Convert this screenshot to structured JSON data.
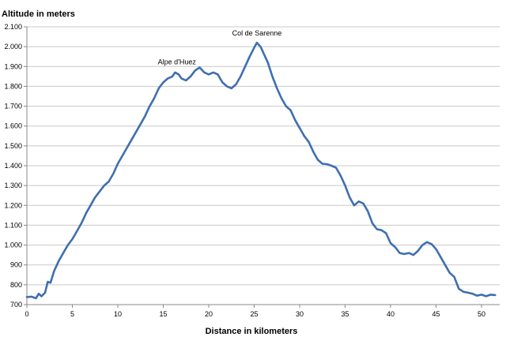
{
  "chart_data": {
    "type": "line",
    "title": "",
    "ylabel": "Altitude in meters",
    "xlabel": "Distance in kilometers",
    "xlim": [
      0,
      52
    ],
    "ylim": [
      700,
      2100
    ],
    "x_ticks": [
      0,
      5,
      10,
      15,
      20,
      25,
      30,
      35,
      40,
      45,
      50
    ],
    "y_ticks": [
      700,
      800,
      900,
      1000,
      1100,
      1200,
      1300,
      1400,
      1500,
      1600,
      1700,
      1800,
      1900,
      2000,
      2100
    ],
    "y_tick_labels": [
      "700",
      "800",
      "900",
      "1.000",
      "1.100",
      "1.200",
      "1.300",
      "1.400",
      "1.500",
      "1.600",
      "1.700",
      "1.800",
      "1.900",
      "2.000",
      "2.100"
    ],
    "x_tick_labels": [
      "0",
      "5",
      "10",
      "15",
      "20",
      "25",
      "30",
      "35",
      "40",
      "45",
      "50"
    ],
    "grid": "horizontal",
    "line_color": "#3F6FAF",
    "annotations": [
      {
        "text": "Alpe d'Huez",
        "x": 16.5,
        "y": 1875
      },
      {
        "text": "Col de Sarenne",
        "x": 25.3,
        "y": 2020
      }
    ],
    "series": [
      {
        "name": "",
        "x": [
          0,
          0.5,
          1,
          1.3,
          1.6,
          2.0,
          2.3,
          2.6,
          3,
          3.5,
          4,
          4.5,
          5,
          5.5,
          6,
          6.5,
          7,
          7.5,
          8,
          8.5,
          9,
          9.5,
          10,
          10.5,
          11,
          11.5,
          12,
          12.5,
          13,
          13.5,
          14,
          14.5,
          15,
          15.5,
          16,
          16.3,
          16.7,
          17,
          17.5,
          18,
          18.5,
          19,
          19.5,
          20,
          20.5,
          21,
          21.5,
          22,
          22.5,
          23,
          23.5,
          24,
          24.5,
          25,
          25.3,
          25.7,
          26,
          26.5,
          27,
          27.5,
          28,
          28.5,
          29,
          29.5,
          30,
          30.5,
          31,
          31.5,
          32,
          32.5,
          33,
          33.5,
          34,
          34.5,
          35,
          35.5,
          36,
          36.5,
          37,
          37.5,
          38,
          38.5,
          39,
          39.5,
          40,
          40.5,
          41,
          41.5,
          42,
          42.5,
          43,
          43.5,
          44,
          44.5,
          45,
          45.5,
          46,
          46.5,
          47,
          47.5,
          48,
          48.5,
          49,
          49.5,
          50,
          50.5,
          51,
          51.5
        ],
        "y": [
          738,
          740,
          732,
          755,
          742,
          760,
          815,
          810,
          870,
          920,
          960,
          1000,
          1030,
          1070,
          1110,
          1160,
          1200,
          1240,
          1270,
          1300,
          1320,
          1360,
          1410,
          1450,
          1490,
          1530,
          1570,
          1610,
          1650,
          1700,
          1740,
          1790,
          1820,
          1840,
          1850,
          1870,
          1860,
          1840,
          1830,
          1850,
          1880,
          1895,
          1870,
          1860,
          1870,
          1860,
          1820,
          1800,
          1790,
          1810,
          1850,
          1900,
          1950,
          1995,
          2020,
          2000,
          1970,
          1920,
          1850,
          1790,
          1740,
          1700,
          1680,
          1630,
          1590,
          1550,
          1520,
          1470,
          1430,
          1410,
          1408,
          1400,
          1390,
          1350,
          1300,
          1240,
          1200,
          1220,
          1210,
          1170,
          1110,
          1080,
          1075,
          1060,
          1010,
          990,
          960,
          955,
          960,
          950,
          970,
          1000,
          1015,
          1005,
          980,
          940,
          900,
          860,
          840,
          780,
          765,
          760,
          755,
          745,
          750,
          742,
          750,
          748
        ]
      }
    ]
  }
}
